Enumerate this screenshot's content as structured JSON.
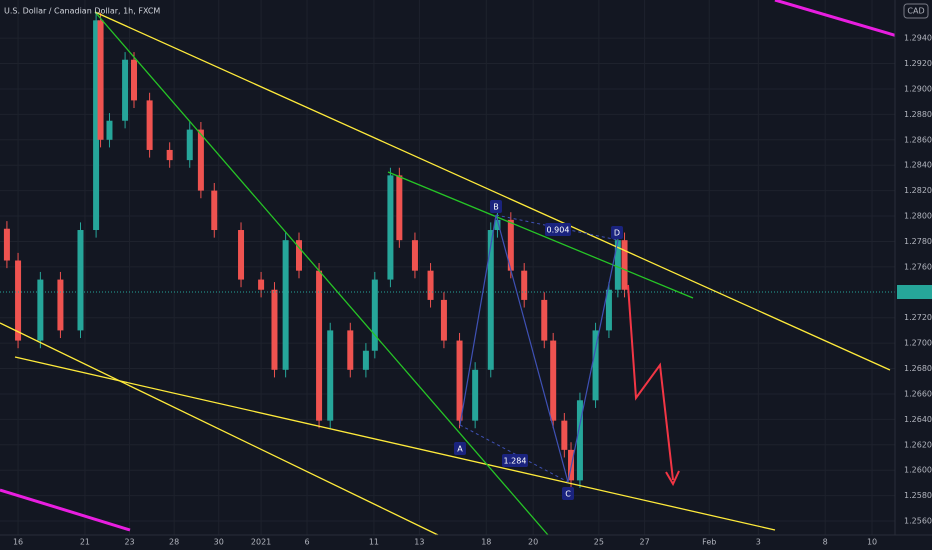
{
  "chart_data": {
    "type": "candlestick",
    "title": "U.S. Dollar / Canadian Dollar, 1h, FXCM",
    "currency": "CAD",
    "annotations": [
      "A",
      "B",
      "C",
      "D",
      "0.904",
      "1.284"
    ],
    "up_color": "#26a69a",
    "down_color": "#ef5350",
    "x": [
      -0.5,
      0,
      1.0,
      1.9,
      2.8,
      3.5,
      3.7,
      4.1,
      4.8,
      5.2,
      5.9,
      6.8,
      7.7,
      8.2,
      8.8,
      10.0,
      10.9,
      11.5,
      12.0,
      12.6,
      13.5,
      14.0,
      14.9,
      15.6,
      16.0,
      16.7,
      17.1,
      17.8,
      18.5,
      19.1,
      19.8,
      20.5,
      21.2,
      21.5,
      22.1,
      22.7,
      23.6,
      24.0,
      24.5,
      24.8,
      25.2,
      25.9,
      26.5,
      26.9,
      27.2
    ],
    "open": [
      1.279,
      1.2765,
      1.2702,
      1.275,
      1.271,
      1.2789,
      1.2954,
      1.286,
      1.2875,
      1.2923,
      1.2891,
      1.2852,
      1.2844,
      1.2868,
      1.282,
      1.2789,
      1.275,
      1.2742,
      1.2679,
      1.2781,
      1.2757,
      1.2639,
      1.271,
      1.2679,
      1.2694,
      1.275,
      1.2832,
      1.2781,
      1.2757,
      1.2734,
      1.2702,
      1.2639,
      1.2679,
      1.2789,
      1.2797,
      1.2757,
      1.2734,
      1.2702,
      1.2639,
      1.2616,
      1.2592,
      1.2655,
      1.271,
      1.2742,
      1.2781
    ],
    "high": [
      1.2796,
      1.2771,
      1.2756,
      1.2756,
      1.2795,
      1.296,
      1.296,
      1.2881,
      1.2929,
      1.2929,
      1.2897,
      1.2858,
      1.2874,
      1.2874,
      1.2826,
      1.2795,
      1.2756,
      1.2748,
      1.2787,
      1.2787,
      1.2763,
      1.2716,
      1.2716,
      1.27,
      1.2756,
      1.2838,
      1.2838,
      1.2787,
      1.2763,
      1.274,
      1.2708,
      1.2685,
      1.2795,
      1.2803,
      1.2803,
      1.2763,
      1.274,
      1.2708,
      1.2645,
      1.2622,
      1.2661,
      1.2716,
      1.2748,
      1.2787,
      1.2787
    ],
    "low": [
      1.2759,
      1.2696,
      1.2696,
      1.2704,
      1.2704,
      1.2783,
      1.2854,
      1.2854,
      1.2869,
      1.2885,
      1.2846,
      1.2838,
      1.2838,
      1.2814,
      1.2783,
      1.2744,
      1.2736,
      1.2673,
      1.2673,
      1.2751,
      1.2633,
      1.2633,
      1.2673,
      1.2673,
      1.2688,
      1.2744,
      1.2775,
      1.2751,
      1.2728,
      1.2696,
      1.2633,
      1.2633,
      1.2673,
      1.2783,
      1.2751,
      1.2728,
      1.2696,
      1.2633,
      1.261,
      1.2586,
      1.2586,
      1.2649,
      1.2704,
      1.2736,
      1.2736
    ],
    "close": [
      1.2765,
      1.2702,
      1.275,
      1.271,
      1.2789,
      1.2954,
      1.286,
      1.2875,
      1.2923,
      1.2891,
      1.2852,
      1.2844,
      1.2868,
      1.282,
      1.2789,
      1.275,
      1.2742,
      1.2679,
      1.2781,
      1.2757,
      1.2639,
      1.271,
      1.2679,
      1.2694,
      1.275,
      1.2832,
      1.2781,
      1.2757,
      1.2734,
      1.2702,
      1.2639,
      1.2679,
      1.2789,
      1.2797,
      1.2757,
      1.2734,
      1.2702,
      1.2639,
      1.2616,
      1.2592,
      1.2655,
      1.271,
      1.2742,
      1.2781,
      1.2742
    ],
    "xlim": [
      -0.81,
      39.33
    ],
    "ylim": [
      1.2549,
      1.297
    ],
    "xticks": [
      {
        "value": 0,
        "label": "16"
      },
      {
        "value": 3.0,
        "label": "21"
      },
      {
        "value": 5.0,
        "label": "23"
      },
      {
        "value": 7.0,
        "label": "28"
      },
      {
        "value": 9.0,
        "label": "30"
      },
      {
        "value": 10.9,
        "label": "2021"
      },
      {
        "value": 12.96,
        "label": "6"
      },
      {
        "value": 15.96,
        "label": "11"
      },
      {
        "value": 18.0,
        "label": "13"
      },
      {
        "value": 21.0,
        "label": "18"
      },
      {
        "value": 23.1,
        "label": "20"
      },
      {
        "value": 26.05,
        "label": "25"
      },
      {
        "value": 28.1,
        "label": "27"
      },
      {
        "value": 31.0,
        "label": "Feb"
      },
      {
        "value": 33.2,
        "label": "3"
      },
      {
        "value": 36.2,
        "label": "8"
      },
      {
        "value": 38.3,
        "label": "10"
      }
    ],
    "yticks": [
      {
        "value": 1.294,
        "label": "1.29400"
      },
      {
        "value": 1.292,
        "label": "1.29200"
      },
      {
        "value": 1.29,
        "label": "1.29000"
      },
      {
        "value": 1.288,
        "label": "1.28800"
      },
      {
        "value": 1.286,
        "label": "1.28600"
      },
      {
        "value": 1.284,
        "label": "1.28400"
      },
      {
        "value": 1.282,
        "label": "1.28200"
      },
      {
        "value": 1.28,
        "label": "1.28000"
      },
      {
        "value": 1.278,
        "label": "1.27800"
      },
      {
        "value": 1.276,
        "label": "1.27600"
      },
      {
        "value": 1.272,
        "label": "1.27200"
      },
      {
        "value": 1.27,
        "label": "1.27000"
      },
      {
        "value": 1.268,
        "label": "1.26800"
      },
      {
        "value": 1.266,
        "label": "1.26600"
      },
      {
        "value": 1.264,
        "label": "1.26400"
      },
      {
        "value": 1.262,
        "label": "1.26200"
      },
      {
        "value": 1.26,
        "label": "1.26000"
      },
      {
        "value": 1.258,
        "label": "1.25800"
      },
      {
        "value": 1.256,
        "label": "1.25600"
      }
    ],
    "grid": true
  }
}
